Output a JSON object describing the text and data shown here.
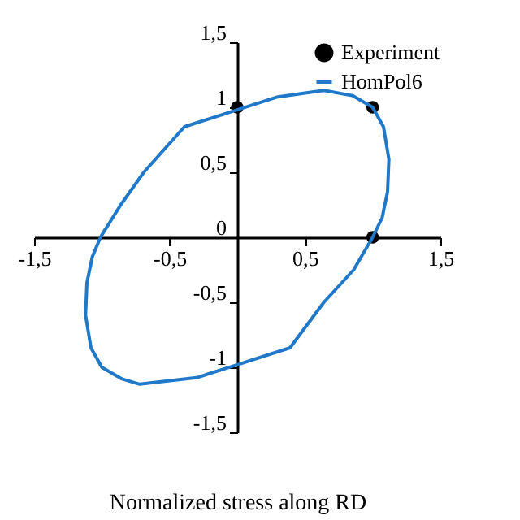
{
  "chart_data": {
    "type": "line",
    "xlabel": "Normalized stress along RD",
    "xlim": [
      -1.5,
      1.5
    ],
    "ylim": [
      -1.5,
      1.5
    ],
    "xticks": [
      {
        "value": -1.5,
        "label": "-1,5"
      },
      {
        "value": -0.5,
        "label": "-0,5"
      },
      {
        "value": 0.5,
        "label": "0,5"
      },
      {
        "value": 1.5,
        "label": "1,5"
      }
    ],
    "yticks": [
      {
        "value": -1.5,
        "label": "-1,5"
      },
      -1,
      {
        "value": -0.5,
        "label": "-0,5"
      },
      0,
      {
        "value": 0.5,
        "label": "0,5"
      },
      1,
      {
        "value": 1.5,
        "label": "1,5"
      }
    ],
    "grid": false,
    "legend": "top right",
    "series": [
      {
        "name": "Experiment",
        "type": "scatter",
        "marker": "circle",
        "color": "#000000",
        "x": [
          0,
          1,
          1
        ],
        "values": [
          1,
          1,
          0
        ]
      },
      {
        "name": "HomPol6",
        "marker": "none",
        "color": "#1f78c8",
        "x": [
          -1.01,
          -0.86,
          -0.69,
          -0.39,
          0,
          0.3,
          0.64,
          0.85,
          1.0,
          1.08,
          1.12,
          1.11,
          1.07,
          1.0,
          0.86,
          0.64,
          0.39,
          0,
          -0.3,
          -0.72,
          -0.85,
          -1.0,
          -1.08,
          -1.12,
          -1.11,
          -1.07,
          -1.01,
          -0.97
        ],
        "values": [
          0,
          0.25,
          0.5,
          0.85,
          0.98,
          1.08,
          1.13,
          1.09,
          1.0,
          0.85,
          0.6,
          0.35,
          0.15,
          0,
          -0.25,
          -0.5,
          -0.85,
          -0.98,
          -1.08,
          -1.13,
          -1.09,
          -1.0,
          -0.85,
          -0.6,
          -0.35,
          -0.15,
          0,
          0.07
        ]
      }
    ]
  }
}
